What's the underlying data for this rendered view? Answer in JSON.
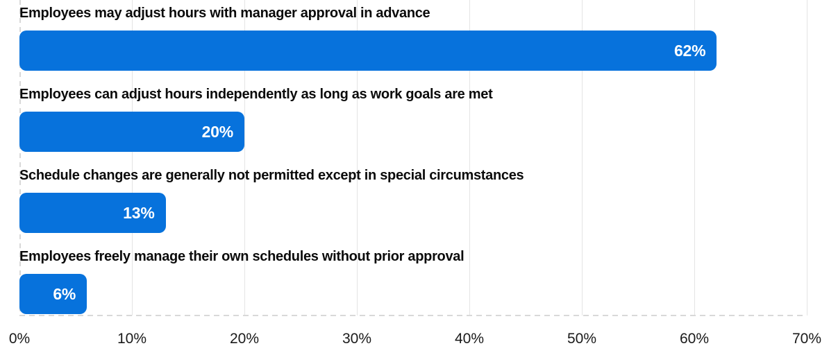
{
  "chart_data": {
    "type": "bar",
    "orientation": "horizontal",
    "title": "",
    "categories": [
      "Employees may adjust hours with manager approval in advance",
      "Employees can adjust hours independently as long as work goals are met",
      "Schedule changes are generally not permitted except in special circumstances",
      "Employees freely manage their own schedules without prior approval"
    ],
    "values": [
      62,
      20,
      13,
      6
    ],
    "value_labels": [
      "62%",
      "20%",
      "13%",
      "6%"
    ],
    "xlabel": "",
    "ylabel": "",
    "xlim": [
      0,
      70
    ],
    "x_tick_labels": [
      "0%",
      "10%",
      "20%",
      "30%",
      "40%",
      "50%",
      "60%",
      "70%"
    ],
    "grid": "vertical solid gridlines every 10%; zero line and baseline dashed",
    "legend": "none",
    "colors": {
      "bar": "#0772DC",
      "value_text": "#FFFFFF",
      "category_text": "#0B0B0B",
      "tick_text": "#1A1A1A",
      "gridline": "#E4E4E4",
      "dashed_line": "#D8D8D8",
      "background": "#FFFFFF"
    }
  }
}
